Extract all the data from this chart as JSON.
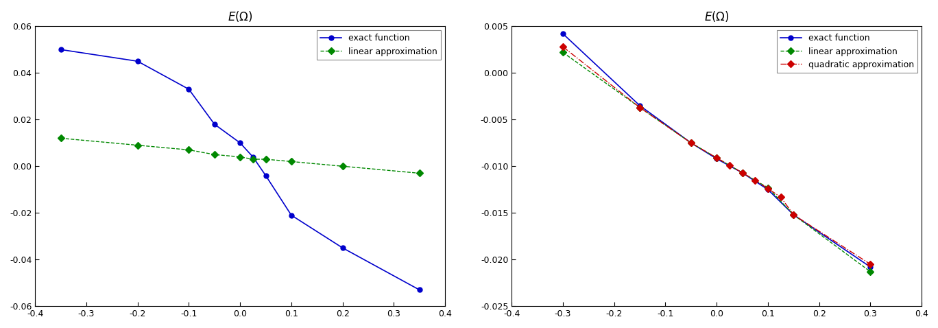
{
  "left": {
    "title": "E(\\Omega)",
    "xlim": [
      -0.4,
      0.4
    ],
    "ylim": [
      -0.06,
      0.06
    ],
    "xticks": [
      -0.4,
      -0.3,
      -0.2,
      -0.1,
      0.0,
      0.1,
      0.2,
      0.3,
      0.4
    ],
    "yticks": [
      -0.06,
      -0.04,
      -0.02,
      0.0,
      0.02,
      0.04,
      0.06
    ],
    "exact_x": [
      -0.35,
      -0.2,
      -0.1,
      -0.05,
      0.0,
      0.025,
      0.05,
      0.1,
      0.2,
      0.35
    ],
    "exact_y": [
      0.05,
      0.045,
      0.033,
      0.018,
      0.01,
      0.004,
      -0.004,
      -0.021,
      -0.035,
      -0.053
    ],
    "linear_x": [
      -0.35,
      -0.2,
      -0.1,
      -0.05,
      0.0,
      0.025,
      0.05,
      0.1,
      0.2,
      0.35
    ],
    "linear_y": [
      0.012,
      0.009,
      0.007,
      0.005,
      0.004,
      0.003,
      0.003,
      0.002,
      0.0,
      -0.003
    ],
    "exact_color": "#0000cc",
    "linear_color": "#008800",
    "bg_color": "#f0f0f0",
    "legend_labels": [
      "exact function",
      "linear approximation"
    ]
  },
  "right": {
    "title": "E(\\Omega)",
    "xlim": [
      -0.4,
      0.4
    ],
    "ylim": [
      -0.025,
      0.005
    ],
    "xticks": [
      -0.4,
      -0.3,
      -0.2,
      -0.1,
      0.0,
      0.1,
      0.2,
      0.3,
      0.4
    ],
    "yticks": [
      -0.025,
      -0.02,
      -0.015,
      -0.01,
      -0.005,
      0.0,
      0.005
    ],
    "exact_x": [
      -0.3,
      -0.15,
      -0.05,
      0.0,
      0.05,
      0.1,
      0.15,
      0.3
    ],
    "exact_y": [
      0.0042,
      -0.0035,
      -0.0075,
      -0.0092,
      -0.0107,
      -0.0125,
      -0.0152,
      -0.0208
    ],
    "linear_x": [
      -0.3,
      -0.15,
      -0.05,
      0.0,
      0.05,
      0.1,
      0.15,
      0.3
    ],
    "linear_y": [
      0.0022,
      -0.0037,
      -0.0075,
      -0.0091,
      -0.0107,
      -0.0123,
      -0.0152,
      -0.0213
    ],
    "quadratic_x": [
      -0.3,
      -0.15,
      -0.05,
      0.0,
      0.025,
      0.05,
      0.075,
      0.1,
      0.125,
      0.15,
      0.3
    ],
    "quadratic_y": [
      0.0028,
      -0.0037,
      -0.0075,
      -0.0091,
      -0.0099,
      -0.0107,
      -0.0115,
      -0.0124,
      -0.0133,
      -0.0152,
      -0.0205
    ],
    "exact_color": "#0000cc",
    "linear_color": "#008800",
    "quadratic_color": "#cc0000",
    "bg_color": "#f0f0f0",
    "legend_labels": [
      "exact function",
      "linear approximation",
      "quadratic approximation"
    ]
  },
  "fig_facecolor": "#ffffff",
  "axes_facecolor": "#ffffff",
  "spine_color": "#000000",
  "tick_color": "#000000",
  "label_fontsize": 10,
  "title_fontsize": 12
}
